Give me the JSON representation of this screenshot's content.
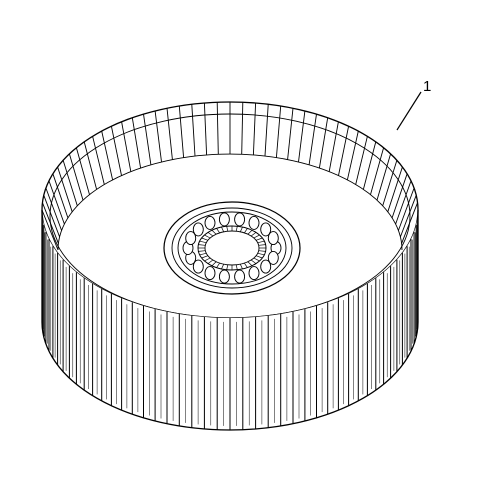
{
  "diagram": {
    "callout": {
      "label": "1"
    },
    "colors": {
      "stroke": "#000000",
      "background": "#ffffff"
    },
    "parts": [
      {
        "name": "clutch-drum-splined-wall"
      },
      {
        "name": "drum-hub-with-bearing"
      }
    ]
  }
}
